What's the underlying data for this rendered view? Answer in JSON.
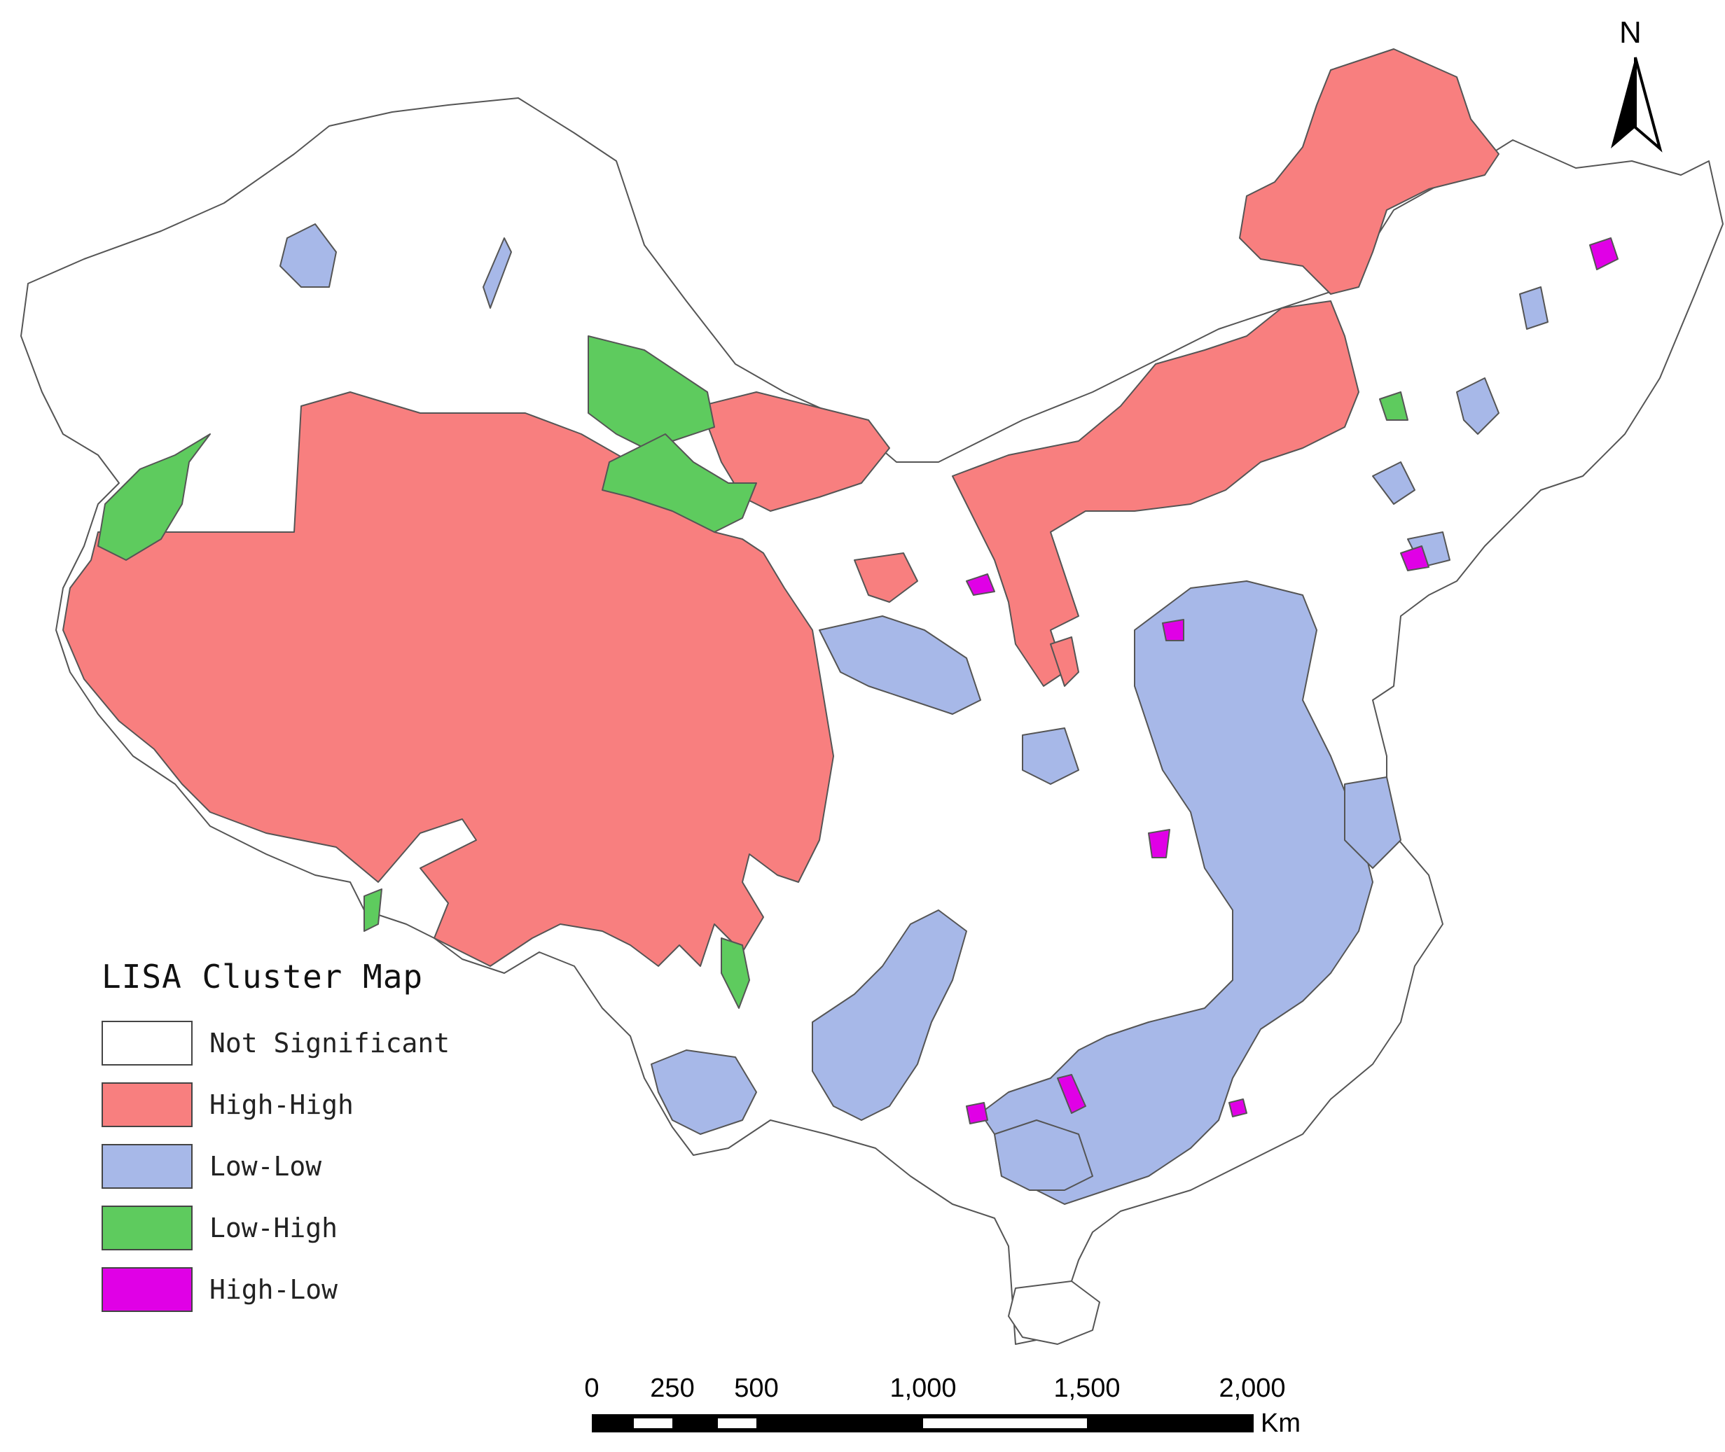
{
  "map": {
    "colors": {
      "not_significant": "#ffffff",
      "high_high": "#f87f7f",
      "low_low": "#a7b8e8",
      "low_high": "#5ecb5e",
      "high_low": "#e000e6"
    }
  },
  "legend": {
    "title": "LISA Cluster Map",
    "items": [
      {
        "label": "Not Significant",
        "color": "#ffffff"
      },
      {
        "label": "High-High",
        "color": "#f87f7f"
      },
      {
        "label": "Low-Low",
        "color": "#a7b8e8"
      },
      {
        "label": "Low-High",
        "color": "#5ecb5e"
      },
      {
        "label": "High-Low",
        "color": "#e000e6"
      }
    ]
  },
  "north_arrow": {
    "letter": "N",
    "icon": "north-arrow-icon"
  },
  "scale_bar": {
    "labels": [
      "0",
      "250",
      "500",
      "1,000",
      "1,500",
      "2,000"
    ],
    "unit": "Km"
  }
}
